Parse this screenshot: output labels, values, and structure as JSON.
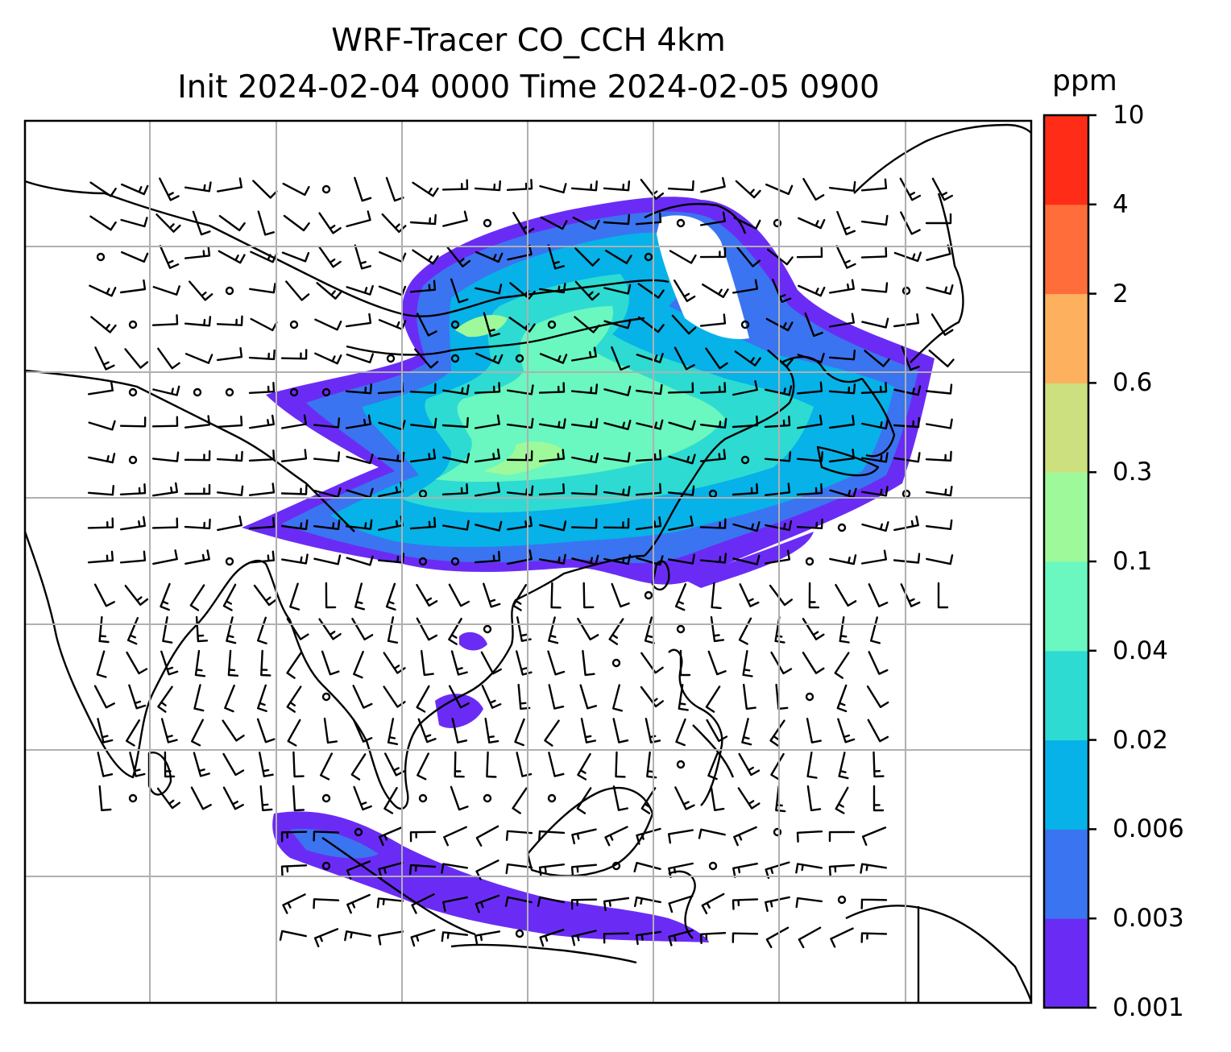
{
  "title": {
    "line1": "WRF-Tracer CO_CCH 4km",
    "line2": "Init 2024-02-04 0000 Time 2024-02-05 0900"
  },
  "colorbar": {
    "unit": "ppm",
    "levels": [
      "0.001",
      "0.003",
      "0.006",
      "0.02",
      "0.04",
      "0.1",
      "0.3",
      "0.6",
      "2",
      "4",
      "10"
    ],
    "colors": [
      "#6a2cf5",
      "#3b74f0",
      "#06b2e8",
      "#2ddbd2",
      "#6af7c0",
      "#9ef99a",
      "#cce07f",
      "#fdb05e",
      "#ff6e3a",
      "#ff2d17"
    ]
  },
  "map": {
    "plume_colors": {
      "low": "#6a2cf5",
      "mid": "#3b74f0",
      "cyan": "#06b2e8",
      "teal": "#2ddbd2",
      "green": "#6af7c0",
      "lightgreen": "#9ef99a"
    },
    "grid_color": "#b0b0b0"
  }
}
